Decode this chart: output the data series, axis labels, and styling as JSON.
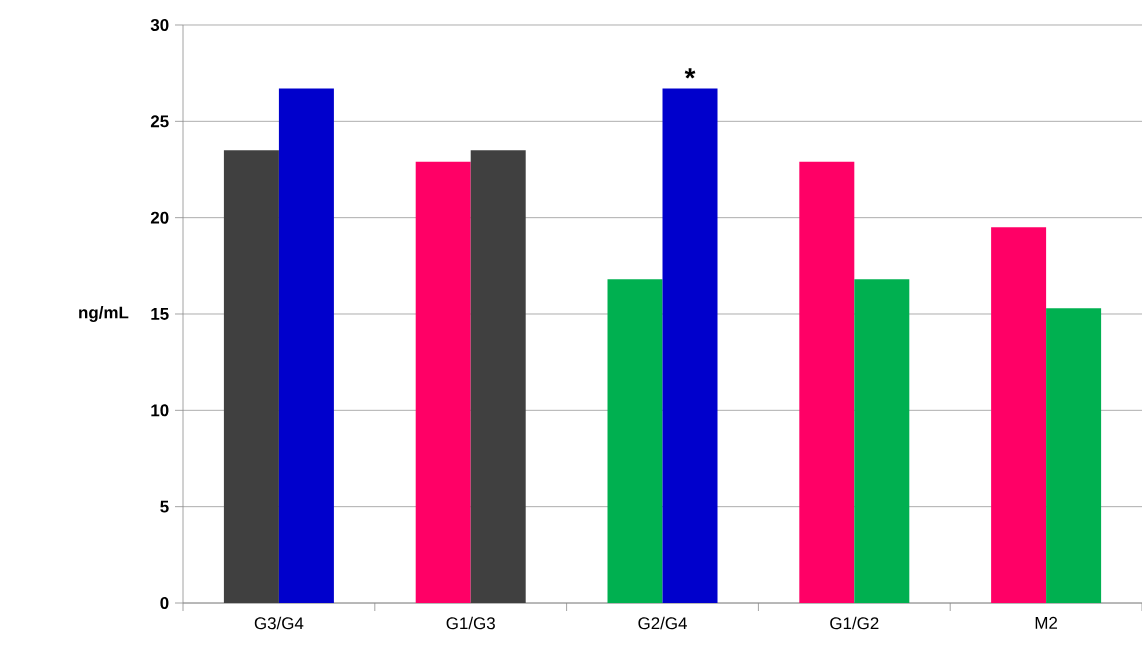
{
  "chart_data": {
    "type": "bar",
    "ylabel": "ng/mL",
    "categories": [
      "G3/G4",
      "G1/G3",
      "G2/G4",
      "G1/G2",
      "M2"
    ],
    "series": [
      {
        "values": [
          23.5,
          22.9,
          16.8,
          22.9,
          19.5
        ],
        "colors": [
          "#404040",
          "#ff0066",
          "#00b050",
          "#ff0066",
          "#ff0066"
        ]
      },
      {
        "values": [
          26.7,
          23.5,
          26.7,
          16.8,
          15.3
        ],
        "colors": [
          "#0000cc",
          "#404040",
          "#0000cc",
          "#00b050",
          "#00b050"
        ]
      }
    ],
    "ylim": [
      0,
      30
    ],
    "yticks": [
      0,
      5,
      10,
      15,
      20,
      25,
      30
    ],
    "grid": "y",
    "annotations": [
      {
        "text": "*",
        "x": "G2/G4",
        "y": 26.7
      }
    ]
  }
}
